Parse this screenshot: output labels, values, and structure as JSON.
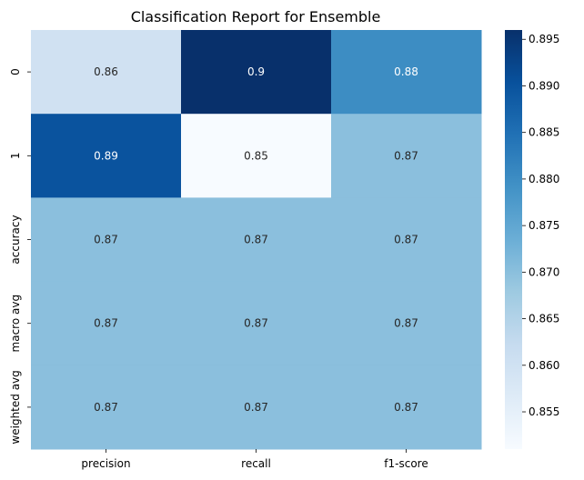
{
  "chart_data": {
    "type": "heatmap",
    "title": "Classification Report for Ensemble",
    "rows": [
      "0",
      "1",
      "accuracy",
      "macro avg",
      "weighted avg"
    ],
    "columns": [
      "precision",
      "recall",
      "f1-score"
    ],
    "values": [
      [
        0.86,
        0.9,
        0.88
      ],
      [
        0.89,
        0.85,
        0.87
      ],
      [
        0.87,
        0.87,
        0.87
      ],
      [
        0.87,
        0.87,
        0.87
      ],
      [
        0.87,
        0.87,
        0.87
      ]
    ],
    "annotations": [
      [
        "0.86",
        "0.9",
        "0.88"
      ],
      [
        "0.89",
        "0.85",
        "0.87"
      ],
      [
        "0.87",
        "0.87",
        "0.87"
      ],
      [
        "0.87",
        "0.87",
        "0.87"
      ],
      [
        "0.87",
        "0.87",
        "0.87"
      ]
    ],
    "colormap": "Blues",
    "vmin": 0.851,
    "vmax": 0.896,
    "colorbar_ticks": [
      "0.855",
      "0.860",
      "0.865",
      "0.870",
      "0.875",
      "0.880",
      "0.885",
      "0.890",
      "0.895"
    ],
    "colorbar_tick_values": [
      0.855,
      0.86,
      0.865,
      0.87,
      0.875,
      0.88,
      0.885,
      0.89,
      0.895
    ],
    "grid": false,
    "legend": "colorbar-right"
  }
}
